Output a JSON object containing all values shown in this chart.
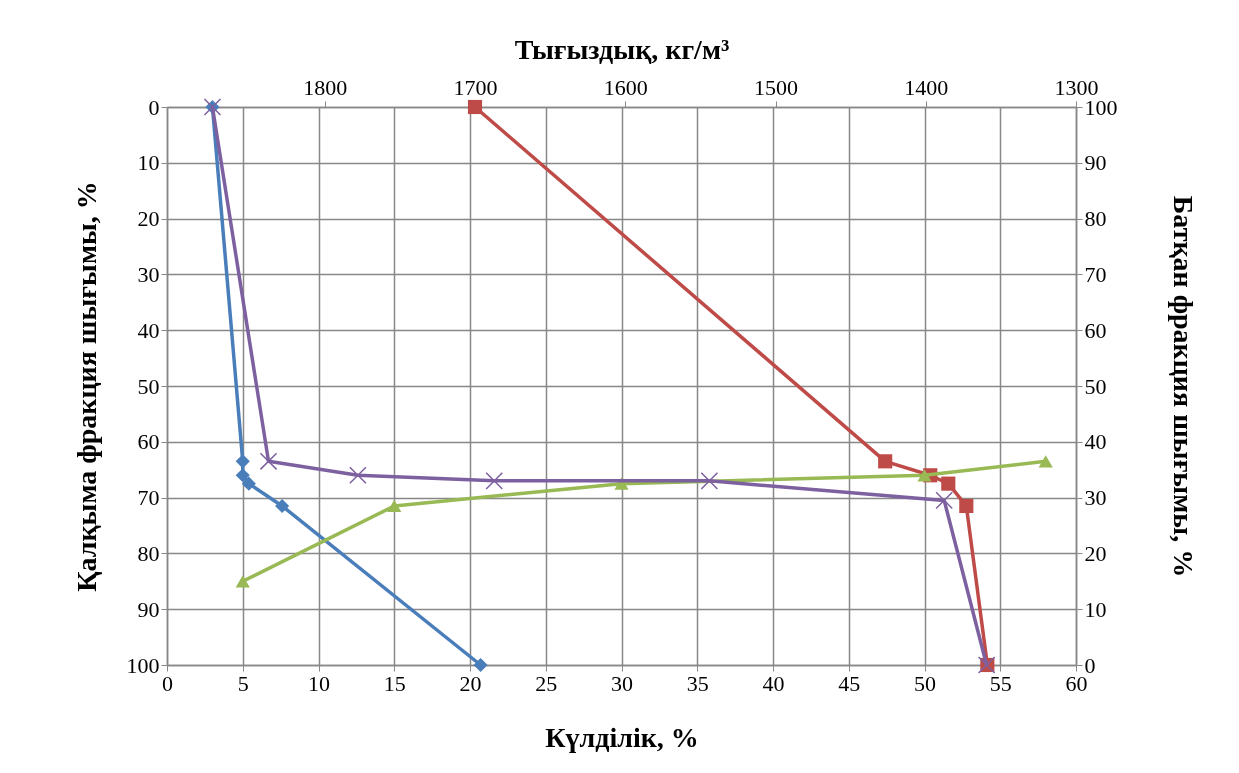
{
  "chart_data": {
    "type": "line",
    "xlabel": "Күлділік, %",
    "ylabel": "Қалқыма фракция шығымы, %",
    "y2label": "Батқан фракция шығымы, %",
    "x2label": "Тығыздық, кг/м³",
    "xlim": [
      0,
      60
    ],
    "xticks": [
      0,
      5,
      10,
      15,
      20,
      25,
      30,
      35,
      40,
      45,
      50,
      55,
      60
    ],
    "ylim": [
      100,
      0
    ],
    "yticks": [
      0,
      10,
      20,
      30,
      40,
      50,
      60,
      70,
      80,
      90,
      100
    ],
    "y2lim": [
      0,
      100
    ],
    "y2ticks": [
      0,
      10,
      20,
      30,
      40,
      50,
      60,
      70,
      80,
      90,
      100
    ],
    "x2lim": [
      1905,
      1300
    ],
    "x2ticks": [
      1800,
      1700,
      1600,
      1500,
      1400,
      1300
    ],
    "grid": true,
    "series": [
      {
        "color": "#4a7ebb",
        "marker": "diamond",
        "x": [
          3,
          5,
          5,
          5.4,
          7.6,
          20.7
        ],
        "values": [
          0,
          63.5,
          66,
          67.5,
          71.5,
          100
        ]
      },
      {
        "color": "#be4b48",
        "marker": "square",
        "axis": "x2",
        "x": [
          1700,
          1427,
          1397,
          1385,
          1373,
          1359
        ],
        "values": [
          0,
          63.5,
          66,
          67.5,
          71.5,
          100
        ]
      },
      {
        "color": "#98b954",
        "marker": "triangle",
        "axis": "y2",
        "x": [
          5,
          15,
          30,
          50,
          58
        ],
        "values": [
          15,
          28.5,
          32.5,
          34,
          36.5
        ]
      },
      {
        "color": "#7d60a0",
        "marker": "cross",
        "x": [
          3,
          6.7,
          12.6,
          21.6,
          35.8,
          51.3,
          54.1
        ],
        "values": [
          0,
          63.5,
          66,
          67,
          67,
          70.5,
          100
        ]
      }
    ]
  }
}
